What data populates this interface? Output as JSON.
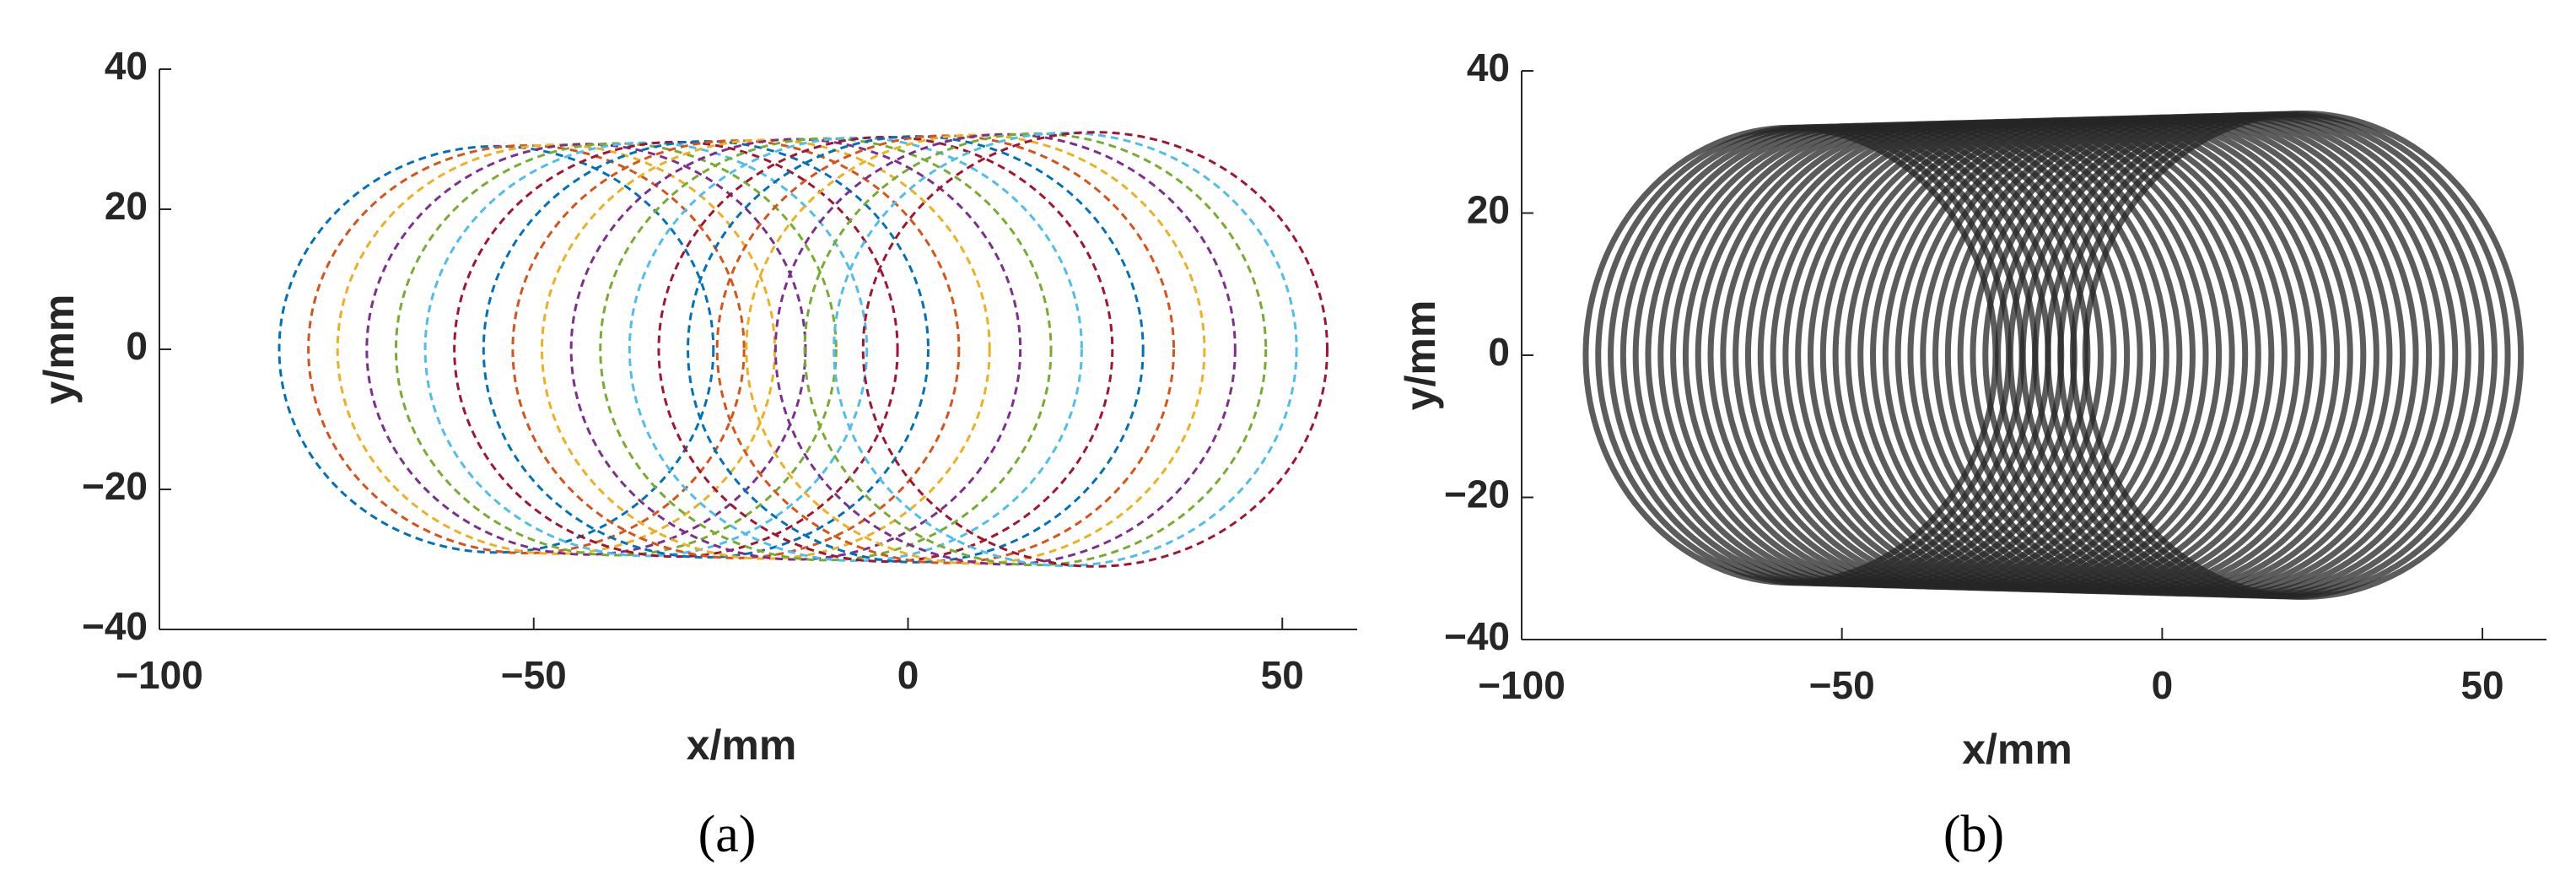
{
  "chart_data": [
    {
      "type": "circles",
      "xlabel": "x/mm",
      "ylabel": "y/mm",
      "caption": "(a)",
      "xlim": [
        -100,
        60
      ],
      "ylim": [
        -40,
        40
      ],
      "xticks": [
        {
          "value": -100,
          "label": "−100"
        },
        {
          "value": -50,
          "label": "−50"
        },
        0,
        50
      ],
      "yticks": [
        {
          "value": -40,
          "label": "−40"
        },
        {
          "value": -20,
          "label": "−20"
        },
        0,
        20,
        40
      ],
      "dashed": true,
      "circles": {
        "cx": [
          -55,
          -51,
          -47,
          -43,
          -39,
          -35,
          -31,
          -27,
          -23,
          -19,
          -15,
          -11,
          -7,
          -3,
          1,
          5,
          9,
          13,
          17,
          21,
          25
        ],
        "cy": [
          0,
          0,
          0,
          0,
          0,
          0,
          0,
          0,
          0,
          0,
          0,
          0,
          0,
          0,
          0,
          0,
          0,
          0,
          0,
          0,
          0
        ],
        "r": [
          29,
          29.1,
          29.2,
          29.3,
          29.4,
          29.5,
          29.6,
          29.7,
          29.8,
          29.9,
          30,
          30.1,
          30.2,
          30.3,
          30.4,
          30.5,
          30.6,
          30.7,
          30.8,
          30.9,
          31
        ],
        "colors": [
          "#0072BD",
          "#D95319",
          "#EDB120",
          "#7E2F8E",
          "#77AC30",
          "#4DBEEE",
          "#A2142F",
          "#0072BD",
          "#D95319",
          "#EDB120",
          "#7E2F8E",
          "#77AC30",
          "#4DBEEE",
          "#A2142F",
          "#0072BD",
          "#D95319",
          "#EDB120",
          "#7E2F8E",
          "#77AC30",
          "#4DBEEE",
          "#A2142F"
        ]
      }
    },
    {
      "type": "circles",
      "xlabel": "x/mm",
      "ylabel": "y/mm",
      "caption": "(b)",
      "xlim": [
        -100,
        60
      ],
      "ylim": [
        -40,
        40
      ],
      "xticks": [
        {
          "value": -100,
          "label": "−100"
        },
        {
          "value": -50,
          "label": "−50"
        },
        0,
        50
      ],
      "yticks": [
        {
          "value": -40,
          "label": "−40"
        },
        {
          "value": -20,
          "label": "−20"
        },
        0,
        20,
        40
      ],
      "dashed": false,
      "color": "#262626",
      "circles": {
        "cx": [
          -58,
          -56,
          -54,
          -52,
          -50,
          -48,
          -46,
          -44,
          -42,
          -40,
          -38,
          -36,
          -34,
          -32,
          -30,
          -28,
          -26,
          -24,
          -22,
          -20,
          -18,
          -16,
          -14,
          -12,
          -10,
          -8,
          -6,
          -4,
          -2,
          0,
          2,
          4,
          6,
          8,
          10,
          12,
          14,
          16,
          18,
          20,
          22
        ],
        "cy": [
          0,
          0,
          0,
          0,
          0,
          0,
          0,
          0,
          0,
          0,
          0,
          0,
          0,
          0,
          0,
          0,
          0,
          0,
          0,
          0,
          0,
          0,
          0,
          0,
          0,
          0,
          0,
          0,
          0,
          0,
          0,
          0,
          0,
          0,
          0,
          0,
          0,
          0,
          0,
          0,
          0
        ],
        "r": [
          32,
          32.05,
          32.1,
          32.15,
          32.2,
          32.25,
          32.3,
          32.35,
          32.4,
          32.45,
          32.5,
          32.55,
          32.6,
          32.65,
          32.7,
          32.75,
          32.8,
          32.85,
          32.9,
          32.95,
          33,
          33.05,
          33.1,
          33.15,
          33.2,
          33.25,
          33.3,
          33.35,
          33.4,
          33.45,
          33.5,
          33.55,
          33.6,
          33.65,
          33.7,
          33.75,
          33.8,
          33.85,
          33.9,
          33.95,
          34
        ]
      }
    }
  ]
}
